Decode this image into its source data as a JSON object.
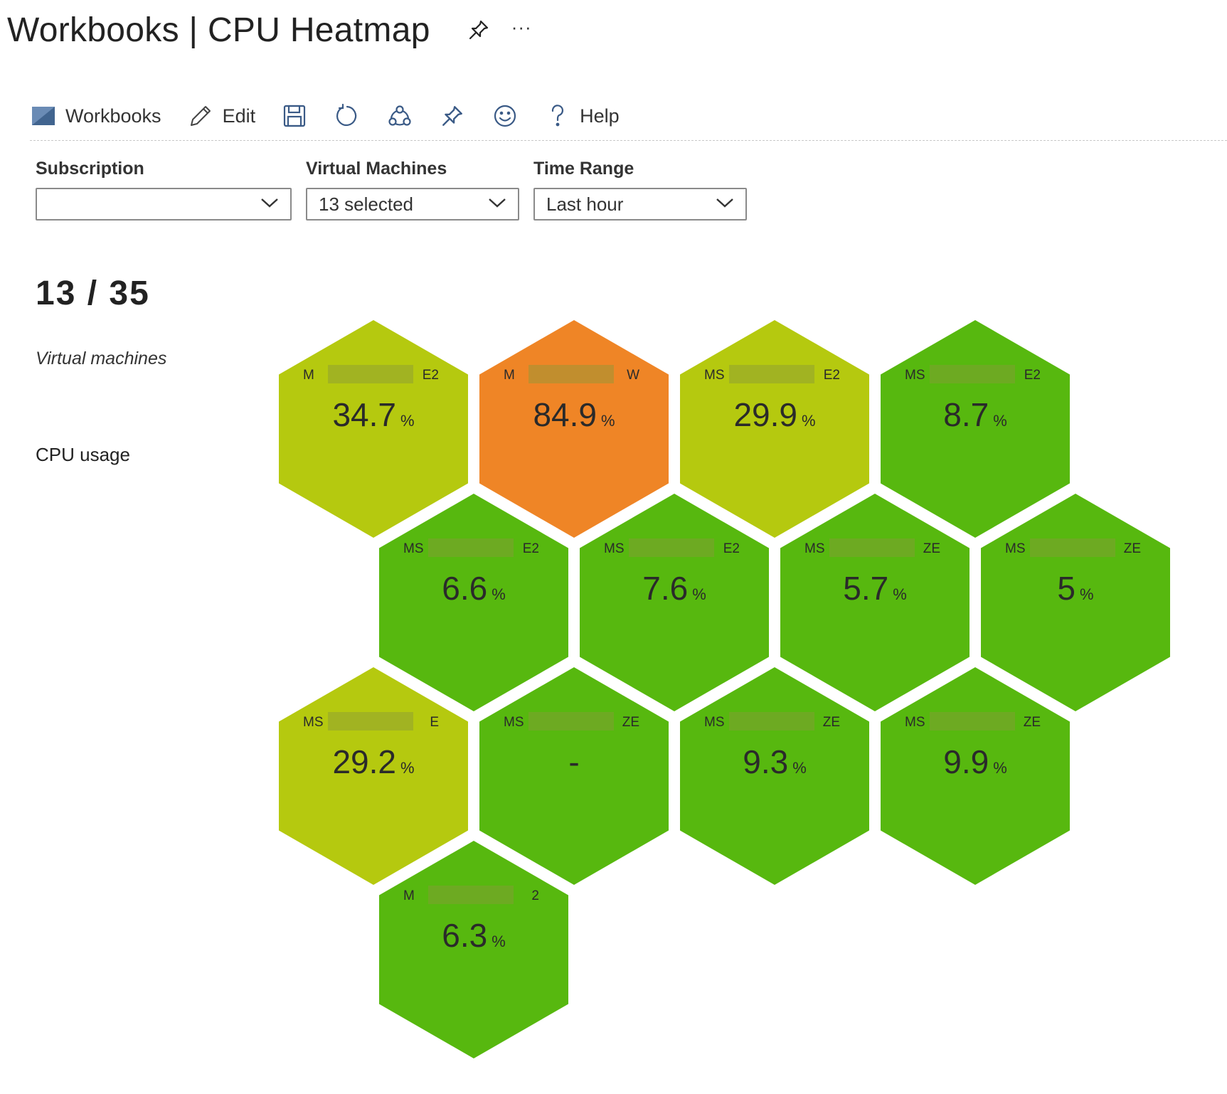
{
  "header": {
    "title": "Workbooks | CPU Heatmap",
    "more_label": "···"
  },
  "toolbar": {
    "workbooks_label": "Workbooks",
    "edit_label": "Edit",
    "help_label": "Help"
  },
  "parameters": {
    "subscription": {
      "label": "Subscription",
      "value": ""
    },
    "virtual_machines": {
      "label": "Virtual Machines",
      "value": "13 selected"
    },
    "time_range": {
      "label": "Time Range",
      "value": "Last hour"
    }
  },
  "summary": {
    "count": "13 / 35",
    "subtitle": "Virtual machines",
    "metric_label": "CPU usage"
  },
  "colors": {
    "low": "#57b80f",
    "medium": "#b5c90f",
    "high": "#ef8526",
    "text": "#2a2a2a",
    "redacted": "#8a9a3a"
  },
  "unit": "%",
  "tiles": [
    {
      "name_prefix": "M",
      "name_suffix": "E2",
      "value": "34.7",
      "level": "medium"
    },
    {
      "name_prefix": "M",
      "name_suffix": "W",
      "value": "84.9",
      "level": "high"
    },
    {
      "name_prefix": "MS",
      "name_suffix": "E2",
      "value": "29.9",
      "level": "medium"
    },
    {
      "name_prefix": "MS",
      "name_suffix": "E2",
      "value": "8.7",
      "level": "low"
    },
    {
      "name_prefix": "MS",
      "name_suffix": "E2",
      "value": "6.6",
      "level": "low"
    },
    {
      "name_prefix": "MS",
      "name_suffix": "E2",
      "value": "7.6",
      "level": "low"
    },
    {
      "name_prefix": "MS",
      "name_suffix": "ZE",
      "value": "5.7",
      "level": "low"
    },
    {
      "name_prefix": "MS",
      "name_suffix": "ZE",
      "value": "5",
      "level": "low"
    },
    {
      "name_prefix": "MS",
      "name_suffix": "E",
      "value": "29.2",
      "level": "medium"
    },
    {
      "name_prefix": "MS",
      "name_suffix": "ZE",
      "value": "-",
      "level": "low"
    },
    {
      "name_prefix": "MS",
      "name_suffix": "ZE",
      "value": "9.3",
      "level": "low"
    },
    {
      "name_prefix": "MS",
      "name_suffix": "ZE",
      "value": "9.9",
      "level": "low"
    },
    {
      "name_prefix": "M",
      "name_suffix": "2",
      "value": "6.3",
      "level": "low"
    }
  ]
}
